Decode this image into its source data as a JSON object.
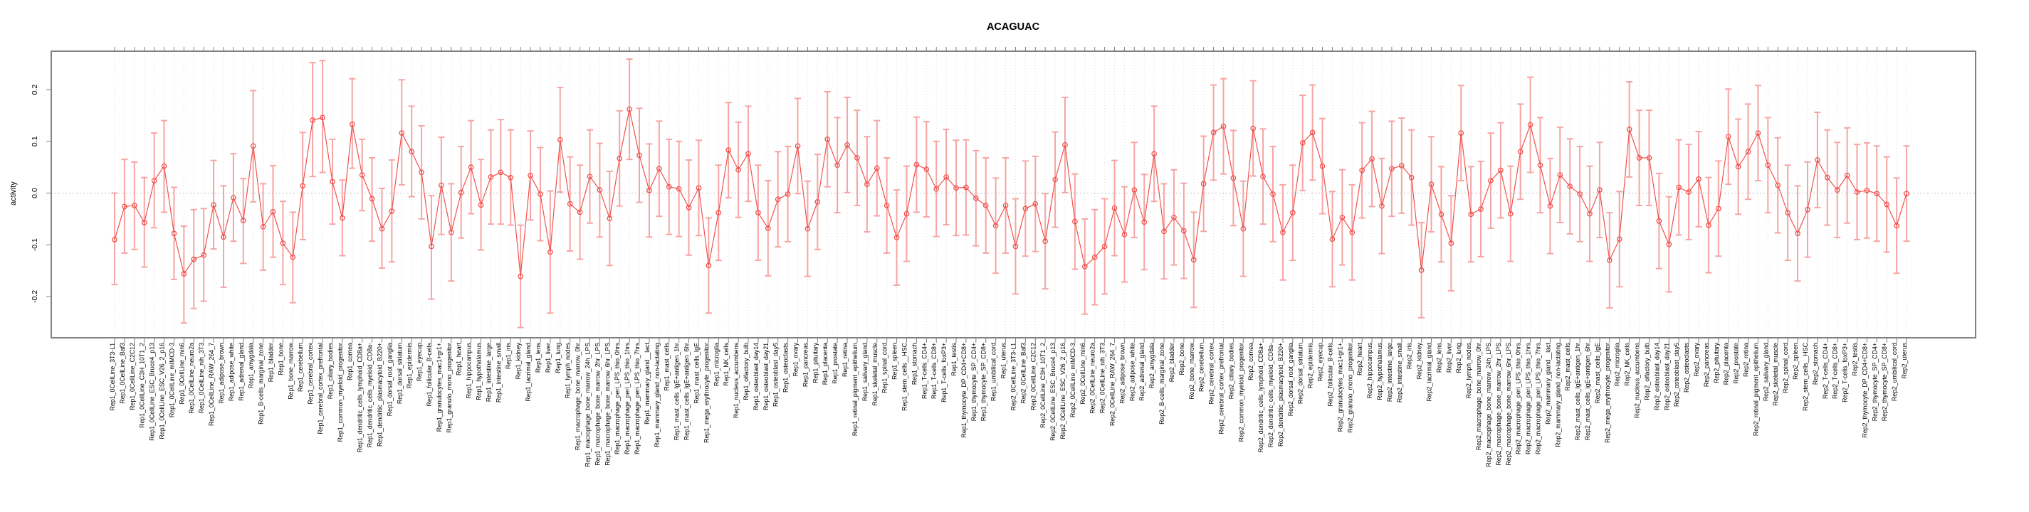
{
  "page": {
    "background": "#ffffff"
  },
  "chart_data": {
    "type": "line",
    "subtype": "points-with-error-bars",
    "title": "ACAGUAC",
    "ylabel": "activity",
    "xlabel": "",
    "legend": "none",
    "grid": "vertical dotted line per category; horizontal dotted line at y=0",
    "yticks": [
      -0.2,
      -0.1,
      0.0,
      0.1,
      0.2
    ],
    "ylim": [
      -0.275,
      0.275
    ],
    "colors": {
      "point_line": "#f0524e",
      "error_bar": "#f6a5a3",
      "zero_line": "#bdbdbd",
      "grid_line": "#dedede",
      "box": "#818181",
      "text": "#000000"
    },
    "categories": [
      "Rep1_0CellLine_3T3-L1",
      "Rep1_0CellLine_Baf3",
      "Rep1_0CellLine_C2C12",
      "Rep1_0CellLine_C3H_10T1_2",
      "Rep1_0CellLine_ESC_Bruce4_p13",
      "Rep1_0CellLine_ESC_V26_2_p16",
      "Rep1_0CellLine_mIMCD-3",
      "Rep1_0CellLine_min6",
      "Rep1_0CellLine_neuro2a",
      "Rep1_0CellLine_nih_3T3",
      "Rep1_0CellLine_RAW_264_7",
      "Rep1_adipose_brown",
      "Rep1_adipose_white",
      "Rep1_adrenal_gland",
      "Rep1_amygdala",
      "Rep1_B-cells_marginal_zone",
      "Rep1_bladder",
      "Rep1_bone",
      "Rep1_bone_marrow",
      "Rep1_cerebellum",
      "Rep1_cerebral_cortex",
      "Rep1_cerebral_cortex_prefrontal",
      "Rep1_ciliary_bodies",
      "Rep1_common_myeloid_progenitor",
      "Rep1_cornea",
      "Rep1_dendritic_cells_lymphoid_CD8a+",
      "Rep1_dendritic_cells_myeloid_CD8a-",
      "Rep1_dendritic_plasmacytoid_B220+",
      "Rep1_dorsal_root_ganglia",
      "Rep1_dorsal_striatum",
      "Rep1_epidermis",
      "Rep1_eyecup",
      "Rep1_follicular_B-cells",
      "Rep1_granulocytes_mac1+gr1+",
      "Rep1_granulo_mono_progenitor",
      "Rep1_heart",
      "Rep1_hippocampus",
      "Rep1_hypothalamus",
      "Rep1_intestine_large",
      "Rep1_intestine_small",
      "Rep1_iris",
      "Rep1_kidney",
      "Rep1_lacrimal_gland",
      "Rep1_lens",
      "Rep1_liver",
      "Rep1_lung",
      "Rep1_lymph_nodes",
      "Rep1_macrophage_bone_marrow_0hr",
      "Rep1_macrophage_bone_marrow_24h_LPS",
      "Rep1_macrophage_bone_marrow_2hr_LPS",
      "Rep1_macrophage_bone_marrow_6hr_LPS",
      "Rep1_macrophage_peri_LPS_thio_0hrs",
      "Rep1_macrophage_peri_LPS_thio_1hrs",
      "Rep1_macrophage_peri_LPS_thio_7hrs",
      "Rep1_mammary_gland__lact",
      "Rep1_mammary_gland_non-lactating",
      "Rep1_mast_cells",
      "Rep1_mast_cells_IgE+antigen_1hr",
      "Rep1_mast_cells_IgE+antigen_6hr",
      "Rep1_mast_cells_IgE",
      "Rep1_mega_erythrocyte_progenitor",
      "Rep1_microglia",
      "Rep1_NK_cells",
      "Rep1_nucleus_accumbens",
      "Rep1_olfactory_bulb",
      "Rep1_osteoblast_day14",
      "Rep1_osteoblast_day21",
      "Rep1_osteoblast_day5",
      "Rep1_osteoclasts",
      "Rep1_ovary",
      "Rep1_pancreas",
      "Rep1_pituitary",
      "Rep1_placenta",
      "Rep1_prostate",
      "Rep1_retina",
      "Rep1_retinal_pigment_epithelium",
      "Rep1_salivary_gland",
      "Rep1_skeletal_muscle",
      "Rep1_spinal_cord",
      "Rep1_spleen",
      "Rep1_stem_cells__HSC",
      "Rep1_stomach",
      "Rep1_T-cells_CD4+",
      "Rep1_T-cells_CD8+",
      "Rep1_T-cells_foxP3+",
      "Rep1_testis",
      "Rep1_thymocyte_DP_CD4+CD8+",
      "Rep1_thymocyte_SP_CD4+",
      "Rep1_thymocyte_SP_CD8+",
      "Rep1_umbilical_cord",
      "Rep1_uterus",
      "Rep2_0CellLine_3T3-L1",
      "Rep2_0CellLine_Baf3",
      "Rep2_0CellLine_C2C12",
      "Rep2_0CellLine_C3H_10T1_2",
      "Rep2_0CellLine_ESC_Bruce4_p13",
      "Rep2_0CellLine_ESC_V26_2_p16",
      "Rep2_0CellLine_mIMCD-3",
      "Rep2_0CellLine_min6",
      "Rep2_0CellLine_neuro2a",
      "Rep2_0CellLine_nih_3T3",
      "Rep2_0CellLine_RAW_264_7",
      "Rep2_adipose_brown",
      "Rep2_adipose_white",
      "Rep2_adrenal_gland",
      "Rep2_amygdala",
      "Rep2_B-cells_marginal_zone",
      "Rep2_bladder",
      "Rep2_bone",
      "Rep2_bone_marrow",
      "Rep2_cerebellum",
      "Rep2_cerebral_cortex",
      "Rep2_cerebral_cortex_prefrontal",
      "Rep2_ciliary_bodies",
      "Rep2_common_myeloid_progenitor",
      "Rep2_cornea",
      "Rep2_dendritic_cells_lymphoid_CD8a+",
      "Rep2_dendritic_cells_myeloid_CD8a-",
      "Rep2_dendritic_plasmacytoid_B220+",
      "Rep2_dorsal_root_ganglia",
      "Rep2_dorsal_striatum",
      "Rep2_epidermis",
      "Rep2_eyecup",
      "Rep2_follicular_B-cells",
      "Rep2_granulocytes_mac1+gr1+",
      "Rep2_granulo_mono_progenitor",
      "Rep2_heart",
      "Rep2_hippocampus",
      "Rep2_hypothalamus",
      "Rep2_intestine_large",
      "Rep2_intestine_small",
      "Rep2_iris",
      "Rep2_kidney",
      "Rep2_lacrimal_gland",
      "Rep2_lens",
      "Rep2_liver",
      "Rep2_lung",
      "Rep2_lymph_nodes",
      "Rep2_macrophage_bone_marrow_0hr",
      "Rep2_macrophage_bone_marrow_24h_LPS",
      "Rep2_macrophage_bone_marrow_2hr_LPS",
      "Rep2_macrophage_bone_marrow_6hr_LPS",
      "Rep2_macrophage_peri_LPS_thio_0hrs",
      "Rep2_macrophage_peri_LPS_thio_1hrs",
      "Rep2_macrophage_peri_LPS_thio_7hrs",
      "Rep2_mammary_gland__lact",
      "Rep2_mammary_gland_non-lactating",
      "Rep2_mast_cells",
      "Rep2_mast_cells_IgE+antigen_1hr",
      "Rep2_mast_cells_IgE+antigen_6hr",
      "Rep2_mast_cells_IgE",
      "Rep2_mega_erythrocyte_progenitor",
      "Rep2_microglia",
      "Rep2_NK_cells",
      "Rep2_nucleus_accumbens",
      "Rep2_olfactory_bulb",
      "Rep2_osteoblast_day14",
      "Rep2_osteoblast_day21",
      "Rep2_osteoblast_day5",
      "Rep2_osteoclasts",
      "Rep2_ovary",
      "Rep2_pancreas",
      "Rep2_pituitary",
      "Rep2_placenta",
      "Rep2_prostate",
      "Rep2_retina",
      "Rep2_retinal_pigment_epithelium",
      "Rep2_salivary_gland",
      "Rep2_skeletal_muscle",
      "Rep2_spinal_cord",
      "Rep2_spleen",
      "Rep2_stem_cells__HSC",
      "Rep2_stomach",
      "Rep2_T-cells_CD4+",
      "Rep2_T-cells_CD8+",
      "Rep2_T-cells_foxP3+",
      "Rep2_testis",
      "Rep2_thymocyte_DP_CD4+CD8+",
      "Rep2_thymocyte_SP_CD4+",
      "Rep2_thymocyte_SP_CD8+",
      "Rep2_umbilical_cord",
      "Rep2_uterus"
    ],
    "series": [
      {
        "name": "activity",
        "values": [
          -0.09,
          -0.026,
          -0.024,
          -0.057,
          0.024,
          0.052,
          -0.078,
          -0.156,
          -0.128,
          -0.12,
          -0.023,
          -0.085,
          -0.009,
          -0.053,
          0.091,
          -0.065,
          -0.036,
          -0.097,
          -0.124,
          0.014,
          0.141,
          0.146,
          0.022,
          -0.048,
          0.133,
          0.035,
          -0.011,
          -0.069,
          -0.035,
          0.116,
          0.08,
          0.04,
          -0.103,
          0.015,
          -0.076,
          0.001,
          0.05,
          -0.023,
          0.031,
          0.04,
          0.03,
          -0.161,
          0.034,
          -0.002,
          -0.114,
          0.103,
          -0.021,
          -0.037,
          0.032,
          0.006,
          -0.049,
          0.067,
          0.162,
          0.073,
          0.005,
          0.047,
          0.012,
          0.008,
          -0.028,
          0.01,
          -0.14,
          -0.038,
          0.083,
          0.045,
          0.076,
          -0.038,
          -0.068,
          -0.012,
          -0.002,
          0.091,
          -0.069,
          -0.017,
          0.104,
          0.054,
          0.093,
          0.068,
          0.017,
          0.048,
          -0.024,
          -0.086,
          -0.04,
          0.055,
          0.046,
          0.008,
          0.031,
          0.01,
          0.011,
          -0.01,
          -0.024,
          -0.063,
          -0.024,
          -0.103,
          -0.03,
          -0.021,
          -0.093,
          0.026,
          0.093,
          -0.055,
          -0.142,
          -0.124,
          -0.103,
          -0.029,
          -0.08,
          0.006,
          -0.056,
          0.076,
          -0.074,
          -0.047,
          -0.073,
          -0.129,
          0.018,
          0.117,
          0.129,
          0.029,
          -0.069,
          0.125,
          0.032,
          -0.002,
          -0.076,
          -0.038,
          0.097,
          0.117,
          0.052,
          -0.089,
          -0.047,
          -0.076,
          0.044,
          0.066,
          -0.025,
          0.047,
          0.053,
          0.03,
          -0.149,
          0.017,
          -0.041,
          -0.097,
          0.116,
          -0.041,
          -0.031,
          0.024,
          0.044,
          -0.04,
          0.08,
          0.132,
          0.054,
          -0.025,
          0.035,
          0.013,
          -0.002,
          -0.04,
          0.006,
          -0.13,
          -0.089,
          0.123,
          0.068,
          0.068,
          -0.054,
          -0.099,
          0.011,
          0.002,
          0.027,
          -0.062,
          -0.03,
          0.109,
          0.051,
          0.08,
          0.116,
          0.054,
          0.015,
          -0.038,
          -0.078,
          -0.032,
          0.064,
          0.03,
          0.006,
          0.034,
          0.002,
          0.005,
          -0.001,
          -0.022,
          -0.063,
          -0.001
        ],
        "ci_low": [
          -0.177,
          -0.116,
          -0.109,
          -0.143,
          -0.067,
          -0.037,
          -0.167,
          -0.251,
          -0.223,
          -0.209,
          -0.108,
          -0.182,
          -0.093,
          -0.136,
          -0.017,
          -0.149,
          -0.124,
          -0.177,
          -0.212,
          -0.09,
          0.032,
          0.04,
          -0.06,
          -0.121,
          0.048,
          -0.034,
          -0.093,
          -0.145,
          -0.133,
          0.016,
          -0.007,
          -0.05,
          -0.205,
          -0.08,
          -0.17,
          -0.087,
          -0.04,
          -0.11,
          -0.06,
          -0.06,
          -0.062,
          -0.26,
          -0.052,
          -0.092,
          -0.232,
          0.002,
          -0.112,
          -0.128,
          -0.058,
          -0.085,
          -0.14,
          -0.025,
          0.065,
          -0.018,
          -0.085,
          -0.045,
          -0.08,
          -0.084,
          -0.12,
          -0.082,
          -0.232,
          -0.13,
          -0.009,
          -0.047,
          -0.016,
          -0.13,
          -0.16,
          -0.104,
          -0.094,
          -0.001,
          -0.161,
          -0.109,
          0.012,
          -0.038,
          0.001,
          -0.024,
          -0.075,
          -0.044,
          -0.116,
          -0.178,
          -0.132,
          -0.037,
          -0.046,
          -0.084,
          -0.061,
          -0.082,
          -0.081,
          -0.102,
          -0.116,
          -0.155,
          -0.116,
          -0.195,
          -0.122,
          -0.113,
          -0.185,
          -0.066,
          0.001,
          -0.147,
          -0.234,
          -0.216,
          -0.195,
          -0.121,
          -0.172,
          -0.086,
          -0.148,
          -0.016,
          -0.166,
          -0.139,
          -0.165,
          -0.221,
          -0.074,
          0.025,
          0.037,
          -0.063,
          -0.161,
          0.033,
          -0.06,
          -0.094,
          -0.168,
          -0.13,
          0.005,
          0.025,
          -0.04,
          -0.181,
          -0.139,
          -0.168,
          -0.048,
          -0.026,
          -0.117,
          -0.045,
          -0.039,
          -0.062,
          -0.241,
          -0.075,
          -0.133,
          -0.189,
          0.024,
          -0.133,
          -0.123,
          -0.068,
          -0.048,
          -0.132,
          -0.012,
          0.04,
          -0.038,
          -0.117,
          -0.057,
          -0.079,
          -0.094,
          -0.132,
          -0.086,
          -0.222,
          -0.181,
          0.031,
          -0.024,
          -0.024,
          -0.146,
          -0.191,
          -0.081,
          -0.09,
          -0.065,
          -0.154,
          -0.122,
          0.017,
          -0.041,
          -0.012,
          0.024,
          -0.038,
          -0.077,
          -0.13,
          -0.17,
          -0.124,
          -0.028,
          -0.062,
          -0.086,
          -0.058,
          -0.09,
          -0.087,
          -0.093,
          -0.114,
          -0.155,
          -0.093
        ],
        "ci_high": [
          0.0,
          0.065,
          0.06,
          0.03,
          0.116,
          0.14,
          0.011,
          -0.064,
          -0.032,
          -0.03,
          0.063,
          0.014,
          0.076,
          0.028,
          0.198,
          0.018,
          0.053,
          -0.016,
          -0.037,
          0.117,
          0.252,
          0.256,
          0.104,
          0.025,
          0.221,
          0.104,
          0.068,
          0.009,
          0.064,
          0.219,
          0.168,
          0.13,
          -0.005,
          0.108,
          0.018,
          0.09,
          0.14,
          0.065,
          0.122,
          0.142,
          0.122,
          -0.062,
          0.12,
          0.088,
          0.004,
          0.204,
          0.07,
          0.054,
          0.122,
          0.096,
          0.042,
          0.159,
          0.259,
          0.164,
          0.095,
          0.139,
          0.104,
          0.1,
          0.064,
          0.102,
          -0.048,
          0.054,
          0.175,
          0.137,
          0.168,
          0.054,
          0.024,
          0.08,
          0.09,
          0.183,
          0.023,
          0.075,
          0.196,
          0.146,
          0.185,
          0.16,
          0.109,
          0.14,
          0.068,
          0.006,
          0.052,
          0.147,
          0.138,
          0.1,
          0.123,
          0.102,
          0.103,
          0.082,
          0.068,
          0.029,
          0.068,
          -0.011,
          0.062,
          0.071,
          -0.001,
          0.118,
          0.185,
          0.037,
          -0.05,
          -0.032,
          -0.011,
          0.063,
          0.012,
          0.098,
          0.036,
          0.168,
          0.018,
          0.045,
          0.019,
          -0.037,
          0.11,
          0.209,
          0.221,
          0.121,
          0.023,
          0.217,
          0.124,
          0.09,
          0.016,
          0.054,
          0.189,
          0.209,
          0.144,
          0.003,
          0.045,
          0.016,
          0.136,
          0.158,
          0.067,
          0.139,
          0.145,
          0.122,
          -0.057,
          0.109,
          0.051,
          -0.005,
          0.208,
          0.051,
          0.061,
          0.116,
          0.136,
          0.052,
          0.172,
          0.224,
          0.146,
          0.067,
          0.127,
          0.105,
          0.09,
          0.052,
          0.098,
          -0.038,
          0.003,
          0.215,
          0.16,
          0.16,
          0.038,
          -0.007,
          0.103,
          0.094,
          0.119,
          0.03,
          0.062,
          0.201,
          0.143,
          0.172,
          0.208,
          0.146,
          0.107,
          0.054,
          0.014,
          0.06,
          0.156,
          0.122,
          0.098,
          0.126,
          0.094,
          0.097,
          0.091,
          0.07,
          0.029,
          0.091
        ]
      }
    ]
  }
}
